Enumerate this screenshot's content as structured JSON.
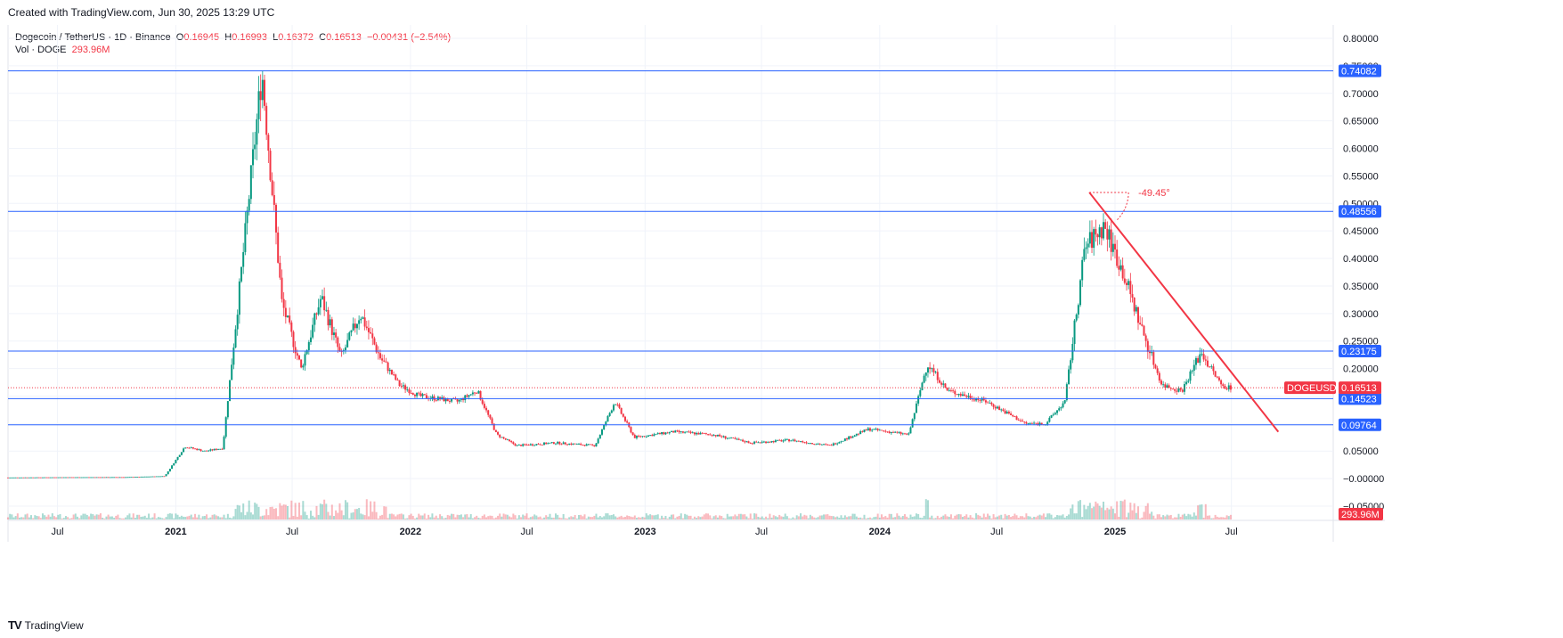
{
  "header": {
    "created": "Created with TradingView.com, Jun 30, 2025 13:29 UTC"
  },
  "legend": {
    "symbol": "Dogecoin / TetherUS · 1D · Binance",
    "o_label": "O",
    "o": "0.16945",
    "h_label": "H",
    "h": "0.16993",
    "l_label": "L",
    "l": "0.16372",
    "c_label": "C",
    "c": "0.16513",
    "change": "−0.00431 (−2.54%)",
    "vol_label": "Vol · DOGE",
    "vol": "293.96M"
  },
  "colors": {
    "up": "#089981",
    "down": "#f23645",
    "hline": "#2962ff",
    "trend": "#f23645",
    "grid": "#f0f3fa"
  },
  "chart_data": {
    "type": "candlestick",
    "y_axis": {
      "ticks": [
        "0.80000",
        "0.75000",
        "0.70000",
        "0.65000",
        "0.60000",
        "0.55000",
        "0.50000",
        "0.45000",
        "0.40000",
        "0.35000",
        "0.30000",
        "0.25000",
        "0.20000",
        "0.15000",
        "0.10000",
        "0.05000",
        "−0.00000",
        "−0.05000"
      ],
      "range": [
        -0.06,
        0.8
      ]
    },
    "x_axis": {
      "ticks": [
        "Jul",
        "2021",
        "Jul",
        "2022",
        "Jul",
        "2023",
        "Jul",
        "2024",
        "Jul",
        "2025",
        "Jul"
      ],
      "bold": [
        "2021",
        "2022",
        "2023",
        "2024",
        "2025"
      ]
    },
    "horizontal_levels": [
      "0.74082",
      "0.48556",
      "0.23175",
      "0.14523",
      "0.09764"
    ],
    "last_price": {
      "label": "DOGEUSDT",
      "value": "0.16513"
    },
    "volume_label": "293.96M",
    "trendline_angle": "-49.45°",
    "price_path": [
      [
        "2020-04",
        0.002
      ],
      [
        "2020-07",
        0.0025
      ],
      [
        "2020-10",
        0.0027
      ],
      [
        "2020-12",
        0.0045
      ],
      [
        "2021-01",
        0.058
      ],
      [
        "2021-02",
        0.05
      ],
      [
        "2021-03",
        0.055
      ],
      [
        "2021-04",
        0.4
      ],
      [
        "2021-05",
        0.74
      ],
      [
        "2021-06",
        0.32
      ],
      [
        "2021-07",
        0.2
      ],
      [
        "2021-08",
        0.33
      ],
      [
        "2021-09",
        0.22
      ],
      [
        "2021-10",
        0.3
      ],
      [
        "2021-11",
        0.22
      ],
      [
        "2021-12",
        0.17
      ],
      [
        "2022-01",
        0.15
      ],
      [
        "2022-03",
        0.14
      ],
      [
        "2022-04",
        0.16
      ],
      [
        "2022-05",
        0.08
      ],
      [
        "2022-06",
        0.06
      ],
      [
        "2022-08",
        0.065
      ],
      [
        "2022-10",
        0.06
      ],
      [
        "2022-11",
        0.14
      ],
      [
        "2022-12",
        0.075
      ],
      [
        "2023-02",
        0.085
      ],
      [
        "2023-04",
        0.08
      ],
      [
        "2023-06",
        0.065
      ],
      [
        "2023-08",
        0.07
      ],
      [
        "2023-10",
        0.06
      ],
      [
        "2023-12",
        0.09
      ],
      [
        "2024-02",
        0.08
      ],
      [
        "2024-03",
        0.21
      ],
      [
        "2024-04",
        0.16
      ],
      [
        "2024-06",
        0.14
      ],
      [
        "2024-08",
        0.1
      ],
      [
        "2024-09",
        0.1
      ],
      [
        "2024-10",
        0.14
      ],
      [
        "2024-11",
        0.42
      ],
      [
        "2024-12",
        0.46
      ],
      [
        "2025-01",
        0.37
      ],
      [
        "2025-02",
        0.26
      ],
      [
        "2025-03",
        0.17
      ],
      [
        "2025-04",
        0.16
      ],
      [
        "2025-05",
        0.23
      ],
      [
        "2025-06",
        0.17
      ],
      [
        "2025-06-30",
        0.165
      ]
    ]
  },
  "brand": {
    "name": "TradingView"
  }
}
